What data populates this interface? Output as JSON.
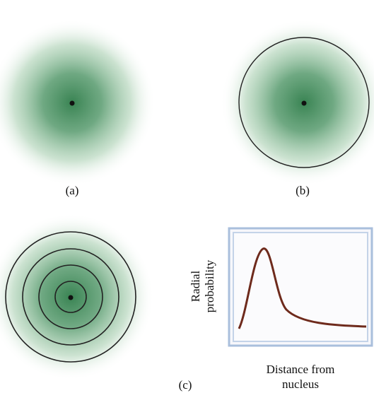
{
  "panels": [
    {
      "label": "(a)"
    },
    {
      "label": "(b)"
    },
    {
      "label": "(c)"
    }
  ],
  "graph": {
    "y_label": [
      "Radial",
      "probability"
    ],
    "x_label": [
      "Distance from",
      "nucleus"
    ]
  }
}
